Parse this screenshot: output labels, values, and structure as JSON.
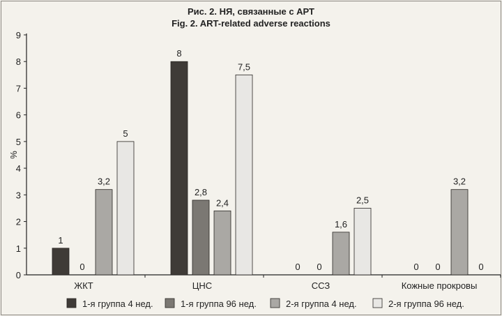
{
  "chart_data": {
    "type": "bar",
    "title": "Рис. 2.  НЯ, связанные с АРТ",
    "subtitle": "Fig. 2. ART-related adverse reactions",
    "xlabel": "",
    "ylabel": "%",
    "ylim": [
      0,
      9
    ],
    "yticks": [
      "0",
      "1",
      "2",
      "3",
      "4",
      "5",
      "6",
      "7",
      "8",
      "9"
    ],
    "grid": false,
    "legend_position": "bottom",
    "categories": [
      "ЖКТ",
      "ЦНС",
      "ССЗ",
      "Кожные прокровы"
    ],
    "series": [
      {
        "name": "1-я группа 4 нед.",
        "color": "#3f3b37",
        "values": [
          1,
          8,
          0,
          0
        ],
        "labels": [
          "1",
          "8",
          "0",
          "0"
        ]
      },
      {
        "name": "1-я группа 96 нед.",
        "color": "#7b7873",
        "values": [
          0,
          2.8,
          0,
          0
        ],
        "labels": [
          "0",
          "2,8",
          "0",
          "0"
        ]
      },
      {
        "name": "2-я группа 4 нед.",
        "color": "#aaa8a4",
        "values": [
          3.2,
          2.4,
          1.6,
          3.2
        ],
        "labels": [
          "3,2",
          "2,4",
          "1,6",
          "3,2"
        ]
      },
      {
        "name": "2-я группа 96 нед.",
        "color": "#e8e7e4",
        "values": [
          5,
          7.5,
          2.5,
          0
        ],
        "labels": [
          "5",
          "7,5",
          "2,5",
          "0"
        ]
      }
    ]
  }
}
